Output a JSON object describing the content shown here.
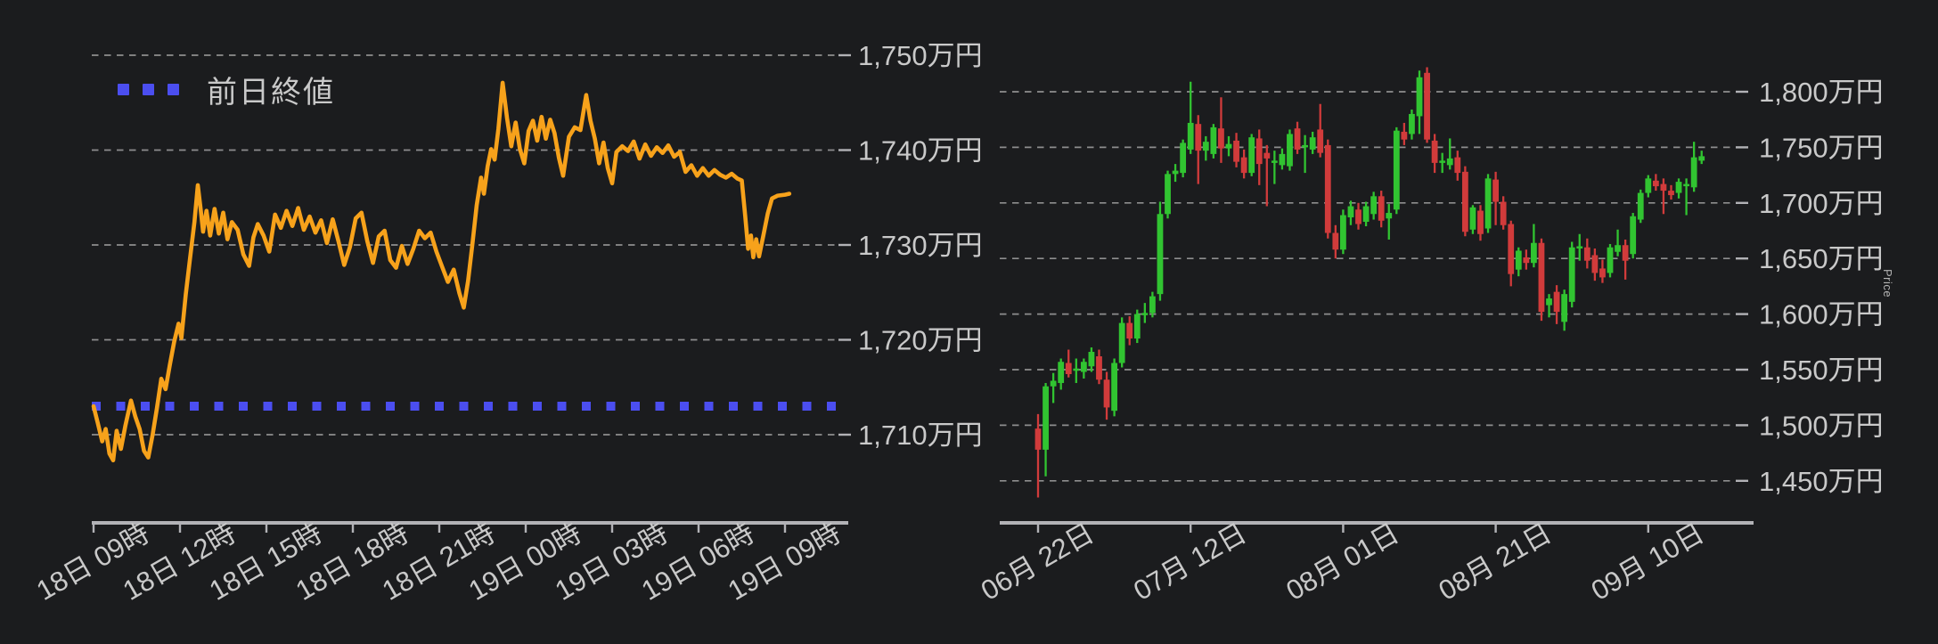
{
  "style": {
    "background": "#1b1c1e",
    "grid_color": "#a3a3a3",
    "axis_color": "#b2b2b6",
    "label_color": "#c9c9c9"
  },
  "chart_data": [
    {
      "type": "line",
      "name": "intraday-price-line-chart",
      "legend_label": "前日終値",
      "line_color": "#f7a21b",
      "prev_close_color": "#4b4ef0",
      "prev_close": 1713,
      "unit": "万円",
      "ylim": [
        1705.5,
        1751
      ],
      "x_ticks": [
        "18日 09時",
        "18日 12時",
        "18日 15時",
        "18日 18時",
        "18日 21時",
        "19日 00時",
        "19日 03時",
        "19日 06時",
        "19日 09時"
      ],
      "x_tick_hours": [
        0,
        3,
        6,
        9,
        12,
        15,
        18,
        21,
        24
      ],
      "y_ticks": [
        "1,750万円",
        "1,740万円",
        "1,730万円",
        "1,720万円",
        "1,710万円"
      ],
      "y_tick_values": [
        1750,
        1740,
        1730,
        1720,
        1710
      ],
      "points": [
        [
          0,
          1713.0
        ],
        [
          0.15,
          1711.2
        ],
        [
          0.3,
          1709.3
        ],
        [
          0.42,
          1710.6
        ],
        [
          0.55,
          1708.0
        ],
        [
          0.68,
          1707.3
        ],
        [
          0.8,
          1710.4
        ],
        [
          0.95,
          1708.5
        ],
        [
          1.1,
          1710.9
        ],
        [
          1.3,
          1713.6
        ],
        [
          1.45,
          1711.9
        ],
        [
          1.6,
          1710.6
        ],
        [
          1.75,
          1708.3
        ],
        [
          1.9,
          1707.6
        ],
        [
          2.05,
          1710.0
        ],
        [
          2.2,
          1712.8
        ],
        [
          2.35,
          1715.9
        ],
        [
          2.5,
          1714.8
        ],
        [
          2.65,
          1717.4
        ],
        [
          2.8,
          1719.8
        ],
        [
          2.95,
          1721.7
        ],
        [
          3.05,
          1720.2
        ],
        [
          3.2,
          1724.8
        ],
        [
          3.35,
          1728.6
        ],
        [
          3.5,
          1732.4
        ],
        [
          3.62,
          1736.3
        ],
        [
          3.72,
          1733.7
        ],
        [
          3.8,
          1731.4
        ],
        [
          3.92,
          1733.6
        ],
        [
          4.05,
          1731.0
        ],
        [
          4.2,
          1733.8
        ],
        [
          4.35,
          1731.2
        ],
        [
          4.5,
          1733.4
        ],
        [
          4.65,
          1730.6
        ],
        [
          4.8,
          1732.4
        ],
        [
          5.0,
          1731.6
        ],
        [
          5.2,
          1729.0
        ],
        [
          5.4,
          1727.8
        ],
        [
          5.55,
          1730.8
        ],
        [
          5.7,
          1732.2
        ],
        [
          5.9,
          1731.0
        ],
        [
          6.1,
          1729.3
        ],
        [
          6.3,
          1733.2
        ],
        [
          6.5,
          1731.8
        ],
        [
          6.7,
          1733.6
        ],
        [
          6.9,
          1732.0
        ],
        [
          7.1,
          1733.9
        ],
        [
          7.3,
          1731.6
        ],
        [
          7.5,
          1733.0
        ],
        [
          7.7,
          1731.3
        ],
        [
          7.9,
          1732.6
        ],
        [
          8.1,
          1730.2
        ],
        [
          8.3,
          1732.7
        ],
        [
          8.5,
          1730.4
        ],
        [
          8.7,
          1727.9
        ],
        [
          8.9,
          1729.8
        ],
        [
          9.1,
          1732.8
        ],
        [
          9.3,
          1733.4
        ],
        [
          9.5,
          1730.4
        ],
        [
          9.7,
          1728.1
        ],
        [
          9.9,
          1730.9
        ],
        [
          10.1,
          1731.5
        ],
        [
          10.3,
          1728.4
        ],
        [
          10.5,
          1727.6
        ],
        [
          10.7,
          1729.9
        ],
        [
          10.9,
          1728.0
        ],
        [
          11.1,
          1729.6
        ],
        [
          11.3,
          1731.5
        ],
        [
          11.5,
          1730.7
        ],
        [
          11.7,
          1731.3
        ],
        [
          11.9,
          1729.3
        ],
        [
          12.1,
          1727.7
        ],
        [
          12.3,
          1726.1
        ],
        [
          12.5,
          1727.4
        ],
        [
          12.7,
          1724.9
        ],
        [
          12.85,
          1723.4
        ],
        [
          13.0,
          1726.2
        ],
        [
          13.15,
          1730.1
        ],
        [
          13.3,
          1734.2
        ],
        [
          13.45,
          1737.1
        ],
        [
          13.55,
          1735.4
        ],
        [
          13.68,
          1738.3
        ],
        [
          13.8,
          1740.1
        ],
        [
          13.92,
          1739.0
        ],
        [
          14.05,
          1742.2
        ],
        [
          14.2,
          1747.1
        ],
        [
          14.35,
          1743.4
        ],
        [
          14.5,
          1740.4
        ],
        [
          14.65,
          1742.9
        ],
        [
          14.8,
          1740.1
        ],
        [
          14.95,
          1738.6
        ],
        [
          15.1,
          1742.0
        ],
        [
          15.25,
          1743.1
        ],
        [
          15.4,
          1741.0
        ],
        [
          15.55,
          1743.5
        ],
        [
          15.7,
          1741.2
        ],
        [
          15.85,
          1743.2
        ],
        [
          16.0,
          1741.8
        ],
        [
          16.15,
          1739.2
        ],
        [
          16.3,
          1737.3
        ],
        [
          16.5,
          1741.4
        ],
        [
          16.7,
          1742.4
        ],
        [
          16.9,
          1742.1
        ],
        [
          17.1,
          1745.8
        ],
        [
          17.25,
          1743.1
        ],
        [
          17.4,
          1741.2
        ],
        [
          17.55,
          1738.6
        ],
        [
          17.7,
          1740.8
        ],
        [
          17.85,
          1738.1
        ],
        [
          18.0,
          1736.5
        ],
        [
          18.15,
          1739.8
        ],
        [
          18.35,
          1740.4
        ],
        [
          18.55,
          1739.9
        ],
        [
          18.75,
          1740.9
        ],
        [
          18.95,
          1739.1
        ],
        [
          19.15,
          1740.6
        ],
        [
          19.35,
          1739.4
        ],
        [
          19.55,
          1740.3
        ],
        [
          19.75,
          1739.7
        ],
        [
          19.95,
          1740.5
        ],
        [
          20.15,
          1739.3
        ],
        [
          20.35,
          1739.8
        ],
        [
          20.55,
          1737.7
        ],
        [
          20.75,
          1738.4
        ],
        [
          20.95,
          1737.3
        ],
        [
          21.15,
          1738.1
        ],
        [
          21.35,
          1737.3
        ],
        [
          21.55,
          1737.9
        ],
        [
          21.75,
          1737.4
        ],
        [
          21.95,
          1737.1
        ],
        [
          22.15,
          1737.5
        ],
        [
          22.35,
          1737.0
        ],
        [
          22.5,
          1736.8
        ],
        [
          22.62,
          1733.0
        ],
        [
          22.72,
          1729.6
        ],
        [
          22.82,
          1731.0
        ],
        [
          22.9,
          1728.7
        ],
        [
          23.0,
          1730.6
        ],
        [
          23.1,
          1728.8
        ],
        [
          23.25,
          1731.0
        ],
        [
          23.4,
          1733.3
        ],
        [
          23.55,
          1734.9
        ],
        [
          23.75,
          1735.2
        ],
        [
          24.0,
          1735.3
        ],
        [
          24.15,
          1735.4
        ]
      ]
    },
    {
      "type": "candlestick",
      "name": "daily-price-candlestick-chart",
      "ylabel": "Price",
      "up_color": "#31c431",
      "down_color": "#d13b3b",
      "unit": "万円",
      "ylim": [
        1430,
        1828
      ],
      "x_ticks": [
        "06月 22日",
        "07月 12日",
        "08月 01日",
        "08月 21日",
        "09月 10日"
      ],
      "x_tick_indices": [
        0,
        20,
        40,
        60,
        80
      ],
      "y_ticks": [
        "1,800万円",
        "1,750万円",
        "1,700万円",
        "1,650万円",
        "1,600万円",
        "1,550万円",
        "1,500万円",
        "1,450万円"
      ],
      "y_tick_values": [
        1800,
        1750,
        1700,
        1650,
        1600,
        1550,
        1500,
        1450
      ],
      "candles": [
        [
          1497,
          1510,
          1435,
          1478
        ],
        [
          1478,
          1538,
          1454,
          1535
        ],
        [
          1535,
          1547,
          1520,
          1540
        ],
        [
          1538,
          1560,
          1532,
          1557
        ],
        [
          1556,
          1568,
          1543,
          1546
        ],
        [
          1549,
          1560,
          1538,
          1551
        ],
        [
          1548,
          1560,
          1542,
          1557
        ],
        [
          1553,
          1570,
          1548,
          1566
        ],
        [
          1562,
          1568,
          1537,
          1541
        ],
        [
          1541,
          1548,
          1505,
          1516
        ],
        [
          1513,
          1560,
          1508,
          1556
        ],
        [
          1556,
          1597,
          1552,
          1592
        ],
        [
          1592,
          1598,
          1572,
          1578
        ],
        [
          1578,
          1604,
          1574,
          1600
        ],
        [
          1599,
          1610,
          1592,
          1601
        ],
        [
          1601,
          1620,
          1597,
          1616
        ],
        [
          1618,
          1701,
          1612,
          1690
        ],
        [
          1690,
          1729,
          1686,
          1726
        ],
        [
          1726,
          1735,
          1719,
          1729
        ],
        [
          1727,
          1757,
          1723,
          1754
        ],
        [
          1748,
          1809,
          1744,
          1772
        ],
        [
          1771,
          1779,
          1717,
          1747
        ],
        [
          1747,
          1760,
          1738,
          1755
        ],
        [
          1744,
          1771,
          1740,
          1768
        ],
        [
          1767,
          1795,
          1736,
          1749
        ],
        [
          1749,
          1760,
          1742,
          1753
        ],
        [
          1756,
          1763,
          1732,
          1737
        ],
        [
          1741,
          1748,
          1722,
          1727
        ],
        [
          1727,
          1762,
          1724,
          1759
        ],
        [
          1758,
          1766,
          1716,
          1735
        ],
        [
          1745,
          1752,
          1697,
          1740
        ],
        [
          1738,
          1747,
          1717,
          1738
        ],
        [
          1734,
          1749,
          1730,
          1744
        ],
        [
          1733,
          1766,
          1729,
          1762
        ],
        [
          1767,
          1773,
          1744,
          1748
        ],
        [
          1752,
          1761,
          1727,
          1752
        ],
        [
          1748,
          1764,
          1744,
          1759
        ],
        [
          1766,
          1789,
          1741,
          1745
        ],
        [
          1752,
          1757,
          1668,
          1673
        ],
        [
          1673,
          1680,
          1650,
          1658
        ],
        [
          1658,
          1694,
          1654,
          1689
        ],
        [
          1687,
          1702,
          1680,
          1697
        ],
        [
          1694,
          1700,
          1676,
          1681
        ],
        [
          1683,
          1701,
          1679,
          1697
        ],
        [
          1690,
          1710,
          1685,
          1706
        ],
        [
          1706,
          1711,
          1678,
          1684
        ],
        [
          1686,
          1699,
          1667,
          1691
        ],
        [
          1694,
          1768,
          1690,
          1765
        ],
        [
          1764,
          1772,
          1752,
          1757
        ],
        [
          1762,
          1784,
          1757,
          1780
        ],
        [
          1778,
          1819,
          1762,
          1813
        ],
        [
          1817,
          1822,
          1754,
          1757
        ],
        [
          1756,
          1762,
          1727,
          1736
        ],
        [
          1737,
          1745,
          1727,
          1738
        ],
        [
          1734,
          1758,
          1730,
          1740
        ],
        [
          1741,
          1747,
          1720,
          1727
        ],
        [
          1728,
          1733,
          1670,
          1674
        ],
        [
          1676,
          1698,
          1672,
          1696
        ],
        [
          1693,
          1698,
          1666,
          1672
        ],
        [
          1677,
          1726,
          1673,
          1722
        ],
        [
          1721,
          1728,
          1680,
          1701
        ],
        [
          1701,
          1706,
          1676,
          1680
        ],
        [
          1681,
          1684,
          1625,
          1636
        ],
        [
          1640,
          1660,
          1634,
          1657
        ],
        [
          1651,
          1658,
          1640,
          1646
        ],
        [
          1646,
          1681,
          1642,
          1664
        ],
        [
          1664,
          1668,
          1594,
          1602
        ],
        [
          1608,
          1618,
          1597,
          1614
        ],
        [
          1620,
          1626,
          1591,
          1602
        ],
        [
          1593,
          1622,
          1585,
          1618
        ],
        [
          1611,
          1665,
          1606,
          1660
        ],
        [
          1660,
          1672,
          1648,
          1661
        ],
        [
          1660,
          1668,
          1641,
          1648
        ],
        [
          1653,
          1659,
          1630,
          1637
        ],
        [
          1641,
          1649,
          1628,
          1633
        ],
        [
          1637,
          1663,
          1633,
          1660
        ],
        [
          1656,
          1676,
          1652,
          1662
        ],
        [
          1662,
          1667,
          1631,
          1648
        ],
        [
          1654,
          1691,
          1650,
          1688
        ],
        [
          1685,
          1712,
          1682,
          1709
        ],
        [
          1709,
          1725,
          1705,
          1722
        ],
        [
          1720,
          1726,
          1711,
          1715
        ],
        [
          1717,
          1722,
          1690,
          1711
        ],
        [
          1711,
          1716,
          1703,
          1707
        ],
        [
          1709,
          1722,
          1704,
          1719
        ],
        [
          1717,
          1722,
          1689,
          1717
        ],
        [
          1714,
          1755,
          1710,
          1741
        ],
        [
          1738,
          1747,
          1735,
          1742
        ]
      ]
    }
  ]
}
